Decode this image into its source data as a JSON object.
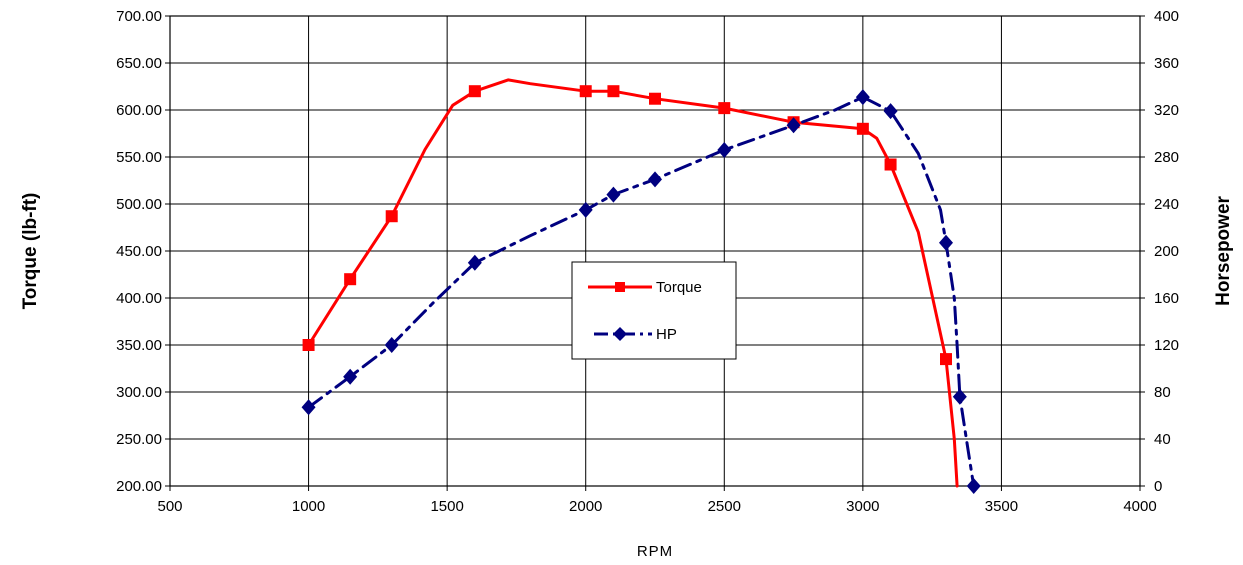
{
  "chart_data": {
    "type": "line",
    "xlabel": "RPM",
    "ylabel": "Torque (lb-ft)",
    "y2label": "Horsepower",
    "xlim": [
      500,
      4000
    ],
    "x_ticks": [
      "500",
      "1000",
      "1500",
      "2000",
      "2500",
      "3000",
      "3500",
      "4000"
    ],
    "ylim": [
      200,
      700
    ],
    "y_ticks": [
      "200.00",
      "250.00",
      "300.00",
      "350.00",
      "400.00",
      "450.00",
      "500.00",
      "550.00",
      "600.00",
      "650.00",
      "700.00"
    ],
    "y2lim": [
      0,
      400
    ],
    "y2_ticks": [
      "0",
      "40",
      "80",
      "120",
      "160",
      "200",
      "240",
      "280",
      "320",
      "360",
      "400"
    ],
    "grid": true,
    "legend_position": "center",
    "series": [
      {
        "name": "Torque",
        "axis": "left",
        "color": "#ff0000",
        "line_style": "solid",
        "marker": "square",
        "points": [
          {
            "x": 1000,
            "y": 350
          },
          {
            "x": 1150,
            "y": 420
          },
          {
            "x": 1300,
            "y": 487
          },
          {
            "x": 1600,
            "y": 620
          },
          {
            "x": 2000,
            "y": 620
          },
          {
            "x": 2100,
            "y": 620
          },
          {
            "x": 2250,
            "y": 612
          },
          {
            "x": 2500,
            "y": 602
          },
          {
            "x": 2750,
            "y": 587
          },
          {
            "x": 3000,
            "y": 580
          },
          {
            "x": 3100,
            "y": 542
          },
          {
            "x": 3300,
            "y": 335
          }
        ],
        "curve": [
          [
            1000,
            350
          ],
          [
            1150,
            420
          ],
          [
            1300,
            487
          ],
          [
            1420,
            558
          ],
          [
            1520,
            605
          ],
          [
            1600,
            620
          ],
          [
            1720,
            632
          ],
          [
            1800,
            628
          ],
          [
            2000,
            620
          ],
          [
            2100,
            620
          ],
          [
            2250,
            612
          ],
          [
            2500,
            602
          ],
          [
            2750,
            587
          ],
          [
            3000,
            580
          ],
          [
            3050,
            570
          ],
          [
            3100,
            542
          ],
          [
            3200,
            470
          ],
          [
            3300,
            335
          ],
          [
            3330,
            250
          ],
          [
            3340,
            200
          ]
        ]
      },
      {
        "name": "HP",
        "axis": "right",
        "color": "#000080",
        "line_style": "dash-dot",
        "marker": "diamond",
        "points": [
          {
            "x": 1000,
            "y": 67
          },
          {
            "x": 1150,
            "y": 93
          },
          {
            "x": 1300,
            "y": 120
          },
          {
            "x": 1600,
            "y": 190
          },
          {
            "x": 2000,
            "y": 235
          },
          {
            "x": 2100,
            "y": 248
          },
          {
            "x": 2250,
            "y": 261
          },
          {
            "x": 2500,
            "y": 286
          },
          {
            "x": 2750,
            "y": 307
          },
          {
            "x": 3000,
            "y": 331
          },
          {
            "x": 3100,
            "y": 319
          },
          {
            "x": 3300,
            "y": 207
          },
          {
            "x": 3350,
            "y": 76
          },
          {
            "x": 3400,
            "y": 0
          }
        ],
        "curve": [
          [
            1000,
            67
          ],
          [
            1150,
            93
          ],
          [
            1300,
            120
          ],
          [
            1450,
            156
          ],
          [
            1600,
            190
          ],
          [
            1800,
            213
          ],
          [
            2000,
            235
          ],
          [
            2100,
            248
          ],
          [
            2250,
            261
          ],
          [
            2500,
            286
          ],
          [
            2750,
            307
          ],
          [
            2900,
            320
          ],
          [
            3000,
            331
          ],
          [
            3100,
            319
          ],
          [
            3200,
            283
          ],
          [
            3280,
            235
          ],
          [
            3300,
            207
          ],
          [
            3330,
            160
          ],
          [
            3340,
            120
          ],
          [
            3350,
            76
          ],
          [
            3380,
            30
          ],
          [
            3400,
            0
          ]
        ]
      }
    ]
  }
}
